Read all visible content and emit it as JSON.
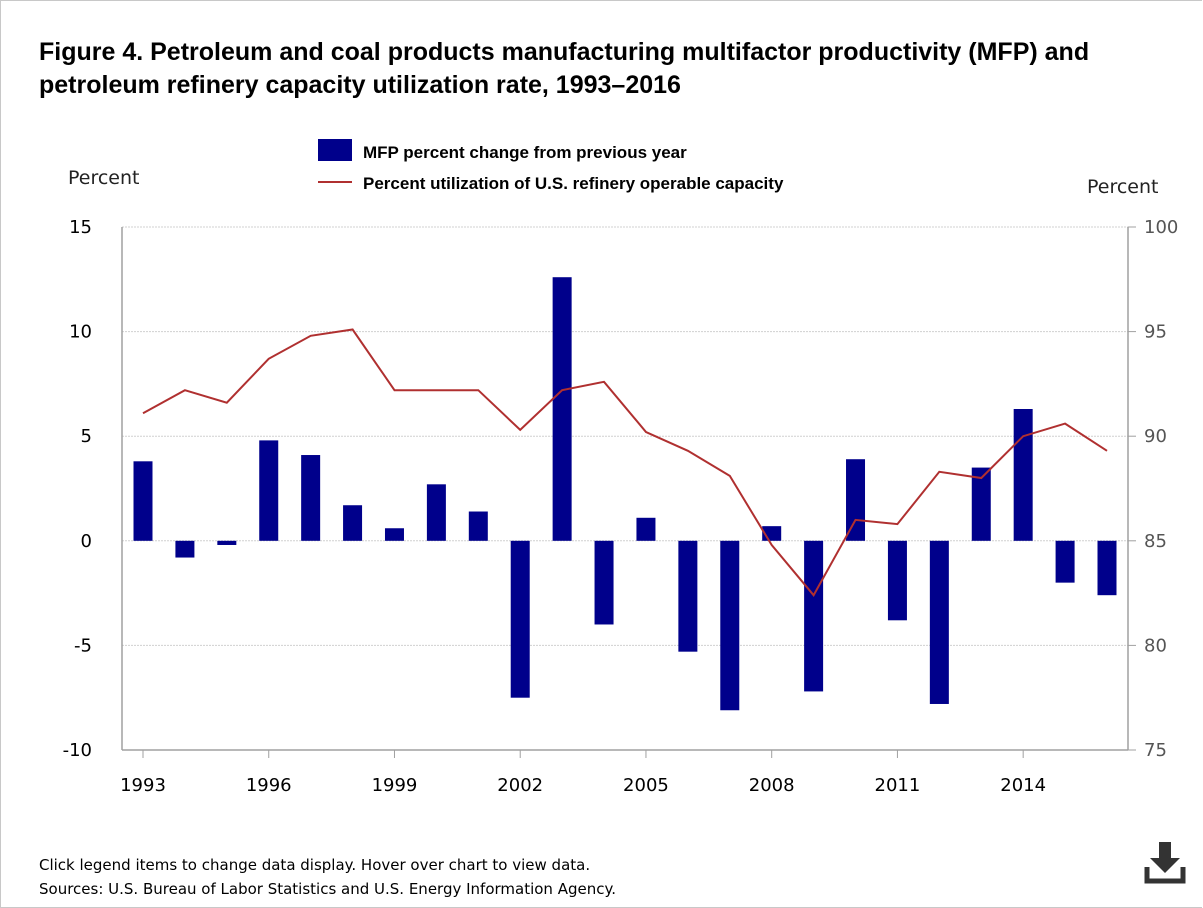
{
  "title": "Figure 4. Petroleum and coal products manufacturing multifactor productivity (MFP) and petroleum refinery capacity utilization rate, 1993–2016",
  "footer": {
    "note": "Click legend items to change data display. Hover over chart to view data.",
    "sources": "Sources: U.S. Bureau of Labor Statistics and U.S. Energy Information Agency."
  },
  "icons": {
    "download": "download-icon"
  },
  "colors": {
    "bars": "#00008b",
    "line": "#b03030",
    "grid": "#d0d0d0",
    "axis": "#a0a0a0"
  },
  "chart_data": {
    "type": "bar+line",
    "title": "Figure 4. Petroleum and coal products manufacturing multifactor productivity (MFP) and petroleum refinery capacity utilization rate, 1993–2016",
    "x": [
      1993,
      1994,
      1995,
      1996,
      1997,
      1998,
      1999,
      2000,
      2001,
      2002,
      2003,
      2004,
      2005,
      2006,
      2007,
      2008,
      2009,
      2010,
      2011,
      2012,
      2013,
      2014,
      2015,
      2016
    ],
    "x_tick_labels": [
      "1993",
      "1996",
      "1999",
      "2002",
      "2005",
      "2008",
      "2011",
      "2014"
    ],
    "y_left": {
      "label": "Percent",
      "range": [
        -10,
        15
      ],
      "ticks": [
        "-10",
        "-5",
        "0",
        "5",
        "10",
        "15"
      ]
    },
    "y_right": {
      "label": "Percent",
      "range": [
        75,
        100
      ],
      "ticks": [
        "75",
        "80",
        "85",
        "90",
        "95",
        "100"
      ]
    },
    "series": [
      {
        "name": "MFP percent change from previous year",
        "type": "bar",
        "axis": "left",
        "color": "#00008b",
        "values": [
          3.8,
          -0.8,
          -0.2,
          4.8,
          4.1,
          1.7,
          0.6,
          2.7,
          1.4,
          -7.5,
          12.6,
          -4.0,
          1.1,
          -5.3,
          -8.1,
          0.7,
          -7.2,
          3.9,
          -3.8,
          -7.8,
          3.5,
          6.3,
          -2.0,
          -2.6
        ]
      },
      {
        "name": "Percent utilization of U.S. refinery operable capacity",
        "type": "line",
        "axis": "right",
        "color": "#b03030",
        "values": [
          91.1,
          92.2,
          91.6,
          93.7,
          94.8,
          95.1,
          92.2,
          92.2,
          92.2,
          90.3,
          92.2,
          92.6,
          90.2,
          89.3,
          88.1,
          84.8,
          82.4,
          86.0,
          85.8,
          88.3,
          88.0,
          90.0,
          90.6,
          89.3
        ]
      }
    ],
    "grid": true,
    "legend_position": "top-center"
  }
}
